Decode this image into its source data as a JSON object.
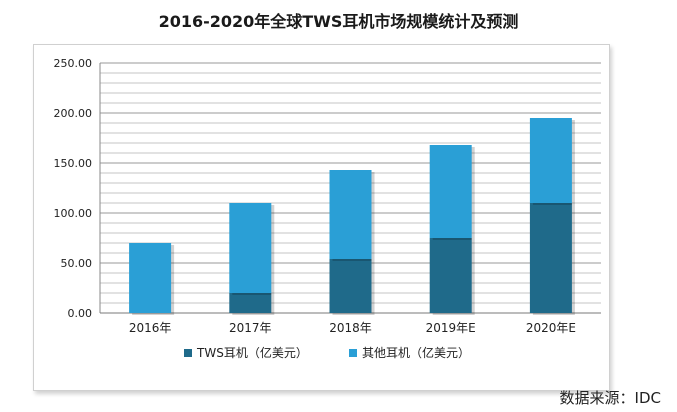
{
  "title": "2016-2020年全球TWS耳机市场规模统计及预测",
  "source": "数据来源：IDC",
  "chart_data": {
    "type": "bar",
    "stacked": true,
    "title": "2016-2020年全球TWS耳机市场规模统计及预测",
    "categories": [
      "2016年",
      "2017年",
      "2018年",
      "2019年E",
      "2020年E"
    ],
    "series": [
      {
        "name": "TWS耳机（亿美元）",
        "color": "#1f6a8a",
        "values": [
          0,
          20,
          54,
          75,
          110
        ]
      },
      {
        "name": "其他耳机（亿美元）",
        "color": "#2a9fd6",
        "values": [
          70,
          90,
          89,
          93,
          85
        ]
      }
    ],
    "yticks": [
      "0.00",
      "50.00",
      "100.00",
      "150.00",
      "200.00",
      "250.00"
    ],
    "ylim": [
      0,
      250
    ],
    "grid": true,
    "legend": "bottom"
  }
}
